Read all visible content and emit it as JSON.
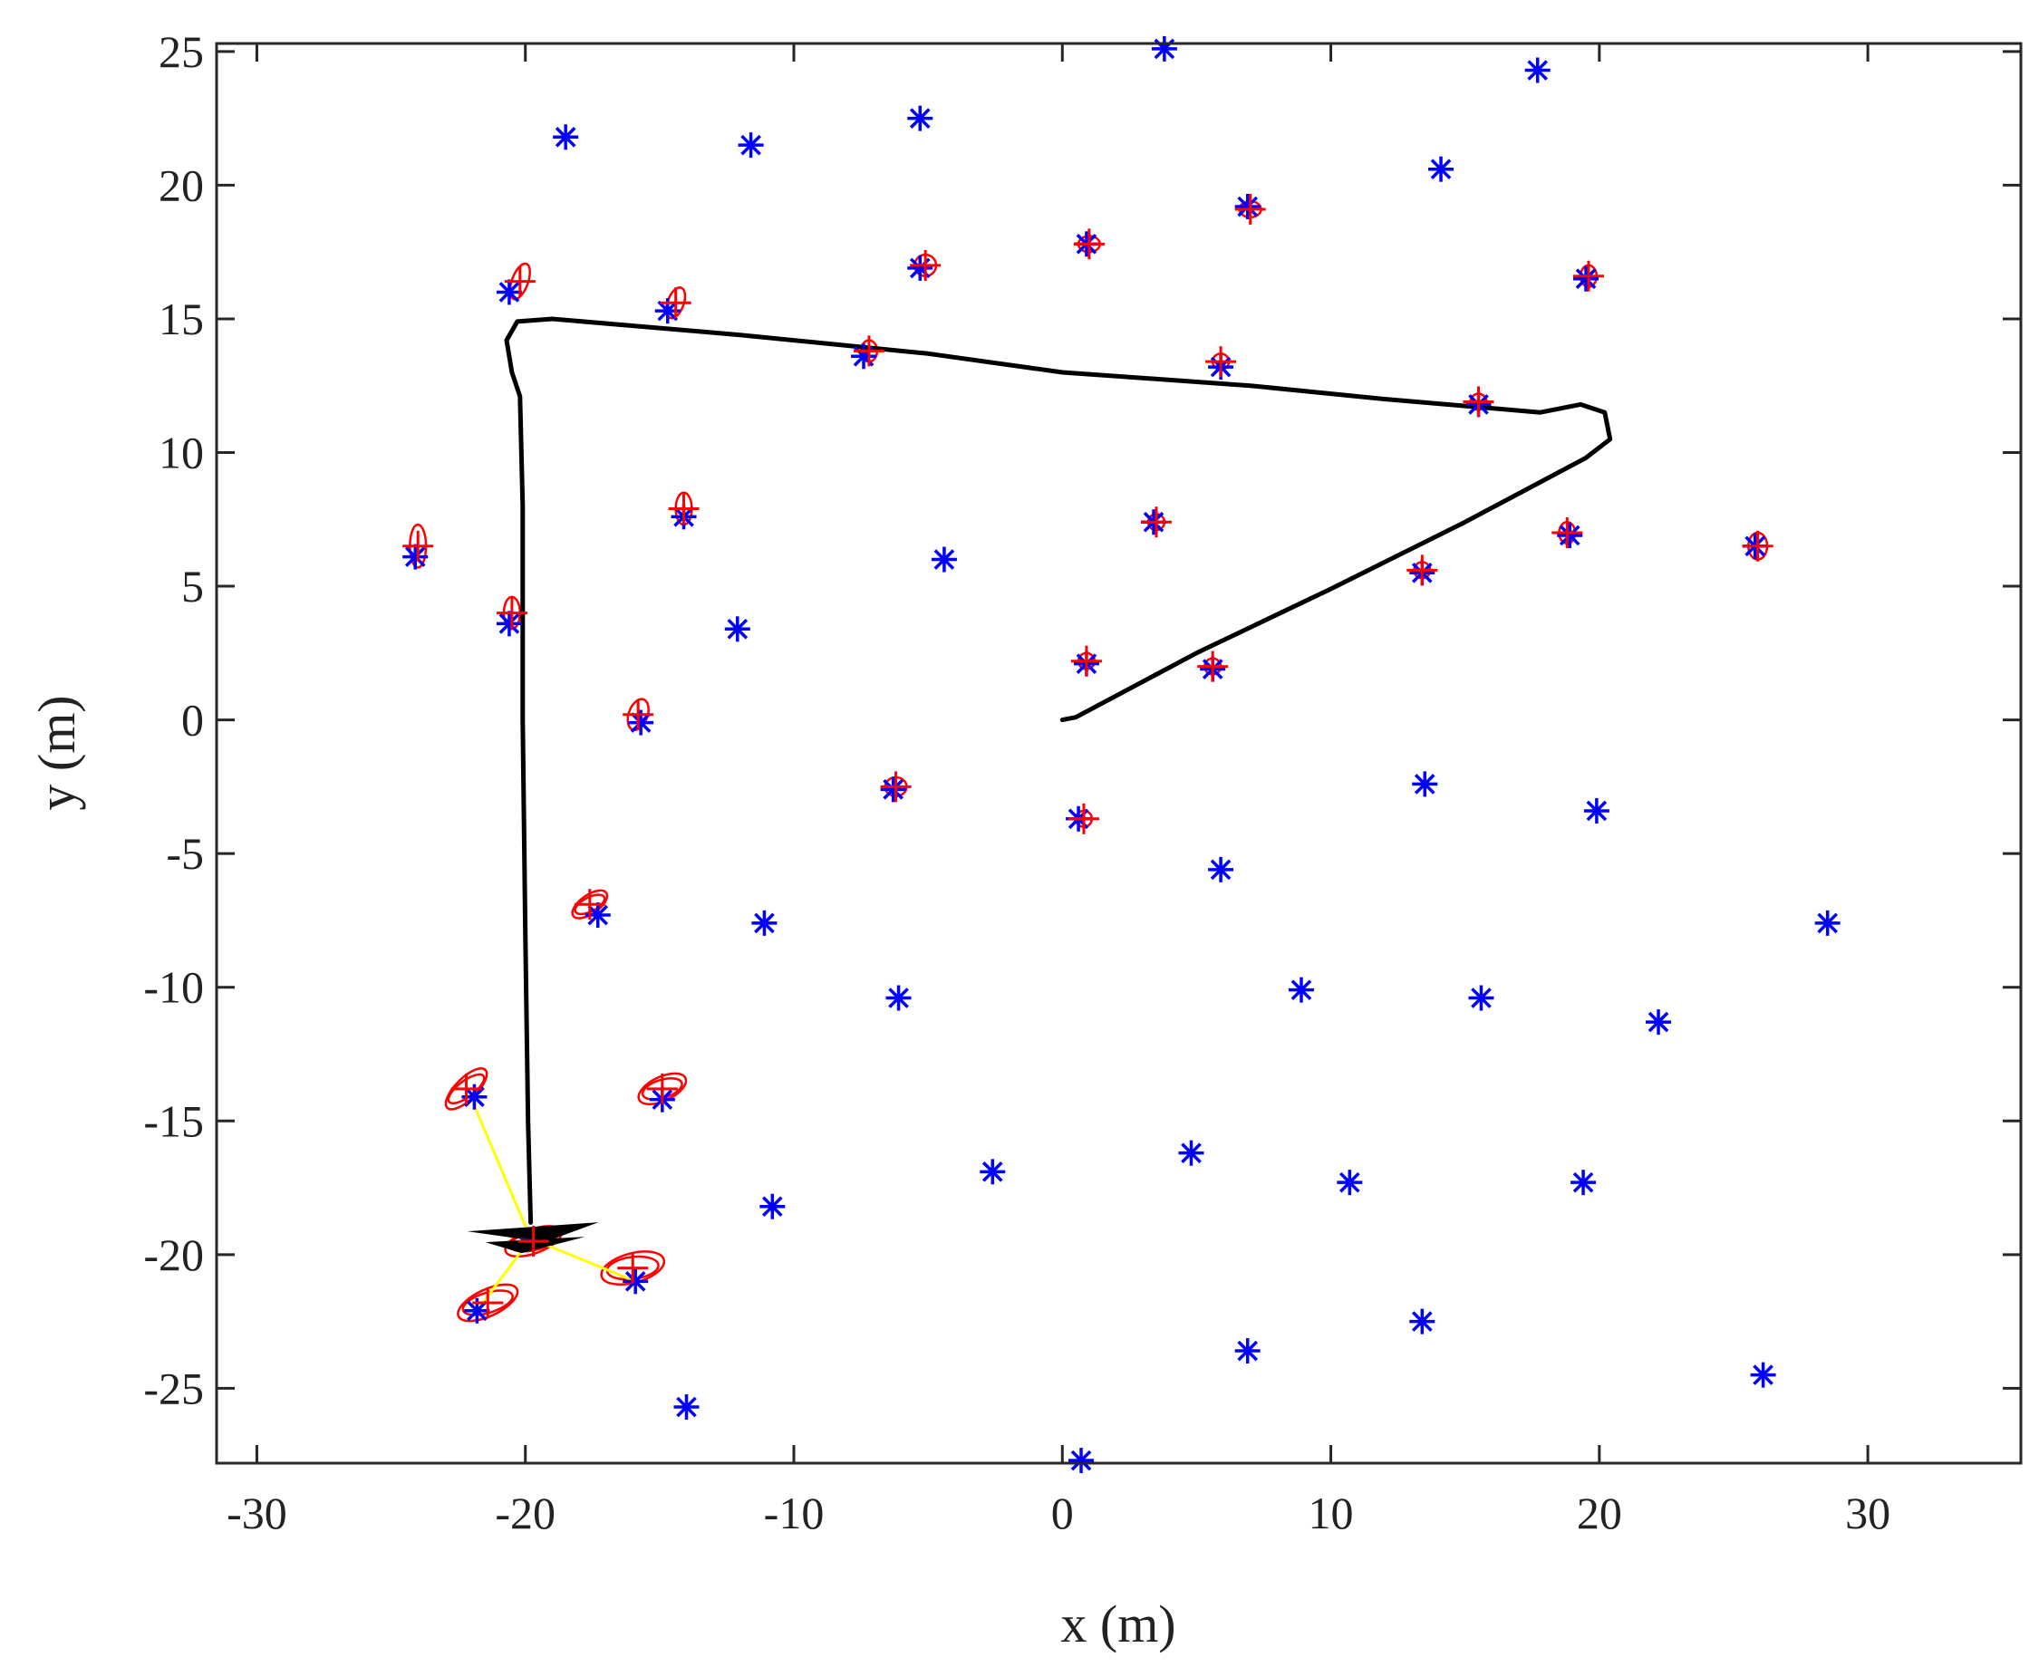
{
  "chart_data": {
    "type": "scatter",
    "title": "",
    "xlabel": "x (m)",
    "ylabel": "y (m)",
    "xlim": [
      -31.5,
      35.7
    ],
    "ylim": [
      -27.8,
      25.3
    ],
    "xticks": [
      -30,
      -20,
      -10,
      0,
      10,
      20,
      30
    ],
    "yticks": [
      -25,
      -20,
      -15,
      -10,
      -5,
      0,
      5,
      10,
      15,
      20,
      25
    ],
    "xtick_labels": [
      "-30",
      "-20",
      "-10",
      "0",
      "10",
      "20",
      "30"
    ],
    "ytick_labels": [
      "-25",
      "-20",
      "-15",
      "-10",
      "-5",
      "0",
      "5",
      "10",
      "15",
      "20",
      "25"
    ],
    "grid": false,
    "box": true,
    "colors": {
      "true_landmarks": "#0000ff",
      "estimated_landmarks": "#ff0000",
      "trajectory": "#000000",
      "observations": "#ffff00"
    },
    "true_landmarks": [
      [
        3.8,
        25.1
      ],
      [
        17.7,
        24.3
      ],
      [
        -18.5,
        21.8
      ],
      [
        -11.6,
        21.5
      ],
      [
        -5.3,
        22.5
      ],
      [
        14.1,
        20.6
      ],
      [
        6.9,
        19.2
      ],
      [
        0.9,
        17.8
      ],
      [
        -5.3,
        16.9
      ],
      [
        19.5,
        16.5
      ],
      [
        -20.6,
        16.0
      ],
      [
        -14.7,
        15.3
      ],
      [
        -7.4,
        13.6
      ],
      [
        5.9,
        13.2
      ],
      [
        15.5,
        11.8
      ],
      [
        -24.1,
        6.1
      ],
      [
        -14.1,
        7.6
      ],
      [
        3.4,
        7.4
      ],
      [
        -4.4,
        6.0
      ],
      [
        18.9,
        6.9
      ],
      [
        25.8,
        6.5
      ],
      [
        13.4,
        5.5
      ],
      [
        -20.6,
        3.6
      ],
      [
        -12.1,
        3.4
      ],
      [
        0.9,
        2.1
      ],
      [
        5.6,
        1.9
      ],
      [
        -15.7,
        -0.1
      ],
      [
        -6.3,
        -2.6
      ],
      [
        0.6,
        -3.7
      ],
      [
        13.5,
        -2.4
      ],
      [
        19.9,
        -3.4
      ],
      [
        5.9,
        -5.6
      ],
      [
        -17.3,
        -7.3
      ],
      [
        -11.1,
        -7.6
      ],
      [
        28.5,
        -7.6
      ],
      [
        -6.1,
        -10.4
      ],
      [
        8.9,
        -10.1
      ],
      [
        15.6,
        -10.4
      ],
      [
        22.2,
        -11.3
      ],
      [
        -21.9,
        -14.1
      ],
      [
        -14.9,
        -14.2
      ],
      [
        -2.6,
        -16.9
      ],
      [
        4.8,
        -16.2
      ],
      [
        10.7,
        -17.3
      ],
      [
        19.4,
        -17.3
      ],
      [
        -10.8,
        -18.2
      ],
      [
        -15.9,
        -21.0
      ],
      [
        -21.8,
        -22.1
      ],
      [
        13.4,
        -22.5
      ],
      [
        6.9,
        -23.6
      ],
      [
        26.1,
        -24.5
      ],
      [
        -14.0,
        -25.7
      ],
      [
        0.7,
        -27.7
      ]
    ],
    "estimated_landmarks": [
      [
        7.0,
        19.1,
        0.4,
        0.3,
        0
      ],
      [
        1.0,
        17.8,
        0.4,
        0.3,
        0
      ],
      [
        -5.1,
        17.0,
        0.4,
        0.4,
        0
      ],
      [
        19.6,
        16.6,
        0.3,
        0.4,
        0
      ],
      [
        -20.2,
        16.4,
        0.3,
        0.7,
        20
      ],
      [
        -14.4,
        15.6,
        0.3,
        0.6,
        20
      ],
      [
        -7.2,
        13.8,
        0.3,
        0.4,
        0
      ],
      [
        5.9,
        13.4,
        0.3,
        0.3,
        0
      ],
      [
        15.5,
        11.9,
        0.3,
        0.3,
        0
      ],
      [
        -24.0,
        6.5,
        0.3,
        0.8,
        0
      ],
      [
        -14.1,
        7.9,
        0.3,
        0.6,
        0
      ],
      [
        3.5,
        7.4,
        0.3,
        0.3,
        0
      ],
      [
        18.8,
        7.0,
        0.3,
        0.4,
        0
      ],
      [
        25.9,
        6.5,
        0.35,
        0.5,
        0
      ],
      [
        13.4,
        5.6,
        0.3,
        0.3,
        0
      ],
      [
        -20.5,
        4.0,
        0.3,
        0.6,
        0
      ],
      [
        0.9,
        2.2,
        0.3,
        0.3,
        0
      ],
      [
        5.6,
        2.0,
        0.3,
        0.3,
        0
      ],
      [
        -15.8,
        0.2,
        0.35,
        0.6,
        20
      ],
      [
        -6.2,
        -2.5,
        0.4,
        0.35,
        0
      ],
      [
        0.8,
        -3.7,
        0.3,
        0.3,
        0
      ],
      [
        -17.6,
        -6.9,
        0.75,
        0.35,
        -35
      ],
      [
        -14.9,
        -13.8,
        0.95,
        0.45,
        -25
      ],
      [
        -22.2,
        -13.8,
        1.0,
        0.4,
        -45
      ],
      [
        -19.7,
        -19.5,
        1.1,
        0.45,
        -20
      ],
      [
        -16.0,
        -20.5,
        1.2,
        0.55,
        -15
      ],
      [
        -21.4,
        -21.8,
        1.2,
        0.5,
        -25
      ]
    ],
    "trajectory": [
      [
        0.0,
        0.0
      ],
      [
        0.5,
        0.1
      ],
      [
        5.0,
        2.5
      ],
      [
        10.0,
        4.9
      ],
      [
        15.0,
        7.4
      ],
      [
        19.5,
        9.8
      ],
      [
        20.4,
        10.5
      ],
      [
        20.2,
        11.5
      ],
      [
        19.3,
        11.8
      ],
      [
        17.8,
        11.5
      ],
      [
        12.0,
        12.0
      ],
      [
        7.0,
        12.5
      ],
      [
        0.0,
        13.0
      ],
      [
        -5.0,
        13.7
      ],
      [
        -12.0,
        14.4
      ],
      [
        -19.0,
        15.0
      ],
      [
        -20.3,
        14.9
      ],
      [
        -20.7,
        14.2
      ],
      [
        -20.5,
        13.0
      ],
      [
        -20.2,
        12.1
      ],
      [
        -20.1,
        8.0
      ],
      [
        -20.1,
        0.0
      ],
      [
        -20.0,
        -8.0
      ],
      [
        -19.9,
        -15.0
      ],
      [
        -19.8,
        -18.8
      ]
    ],
    "robot_pose": [
      -19.8,
      -19.4
    ],
    "observations": [
      [
        -19.8,
        -19.4,
        -22.0,
        -14.2
      ],
      [
        -19.8,
        -19.4,
        -15.9,
        -21.0
      ],
      [
        -19.8,
        -19.4,
        -21.8,
        -22.1
      ],
      [
        -19.8,
        -19.4,
        -20.3,
        -19.3
      ]
    ]
  }
}
